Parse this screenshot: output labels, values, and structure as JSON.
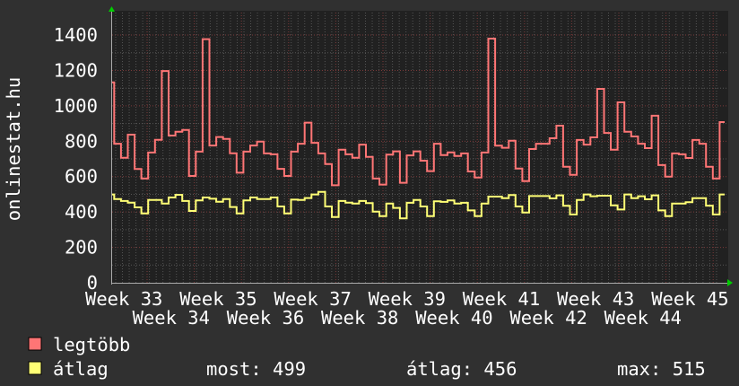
{
  "chart_data": {
    "type": "line",
    "title": "",
    "ylabel": "onlinestat.hu",
    "xlabel": "",
    "ylim": [
      0,
      1450
    ],
    "y_ticks": [
      0,
      200,
      400,
      600,
      800,
      1000,
      1200,
      1400
    ],
    "x_tick_labels": [
      "Week 33",
      "Week 34",
      "Week 35",
      "Week 36",
      "Week 37",
      "Week 38",
      "Week 39",
      "Week 40",
      "Week 41",
      "Week 42",
      "Week 43",
      "Week 44",
      "Week 45"
    ],
    "x_unit": "day",
    "grid": true,
    "legend_position": "bottom-left",
    "series": [
      {
        "name": "legtöbb",
        "color": "#ff7575",
        "values": [
          1133,
          786,
          707,
          837,
          643,
          589,
          736,
          808,
          1197,
          832,
          854,
          864,
          604,
          741,
          1377,
          776,
          824,
          813,
          732,
          622,
          741,
          776,
          798,
          731,
          726,
          644,
          604,
          741,
          786,
          905,
          791,
          731,
          671,
          551,
          752,
          726,
          707,
          781,
          712,
          589,
          555,
          724,
          743,
          565,
          720,
          743,
          690,
          631,
          786,
          722,
          737,
          717,
          731,
          629,
          595,
          736,
          1380,
          775,
          763,
          803,
          646,
          575,
          756,
          786,
          786,
          817,
          888,
          656,
          610,
          807,
          781,
          822,
          1096,
          847,
          752,
          1020,
          854,
          827,
          786,
          761,
          944,
          665,
          600,
          731,
          726,
          705,
          807,
          786,
          656,
          589,
          908
        ]
      },
      {
        "name": "átlag",
        "color": "#ffff75",
        "values": [
          499,
          473,
          462,
          453,
          426,
          392,
          468,
          468,
          448,
          482,
          497,
          462,
          406,
          465,
          482,
          475,
          458,
          473,
          428,
          392,
          465,
          482,
          473,
          473,
          482,
          431,
          392,
          470,
          468,
          479,
          499,
          514,
          431,
          372,
          462,
          453,
          448,
          462,
          450,
          402,
          377,
          448,
          423,
          364,
          452,
          468,
          431,
          377,
          460,
          457,
          465,
          448,
          452,
          409,
          377,
          448,
          487,
          487,
          478,
          496,
          431,
          397,
          490,
          490,
          490,
          477,
          494,
          435,
          386,
          468,
          499,
          489,
          492,
          492,
          438,
          414,
          499,
          478,
          489,
          472,
          494,
          409,
          377,
          448,
          448,
          455,
          478,
          478,
          436,
          386,
          499
        ]
      }
    ]
  },
  "legend": {
    "items": [
      {
        "label": "legtöbb",
        "color": "#ff7575"
      },
      {
        "label": "átlag",
        "color": "#ffff75"
      }
    ],
    "stats": {
      "most": "most: 499",
      "atlag": "átlag: 456",
      "max": "max: 515"
    }
  },
  "colors": {
    "background": "#303030",
    "plot_background": "#212121",
    "major_grid": "#7a3a3a",
    "minor_grid": "#555555",
    "axis_arrow": "#00cc00"
  }
}
